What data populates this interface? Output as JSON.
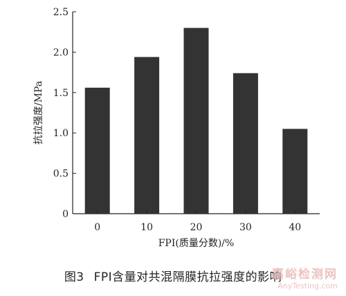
{
  "chart_data": {
    "type": "bar",
    "categories": [
      "0",
      "10",
      "20",
      "30",
      "40"
    ],
    "values": [
      1.56,
      1.94,
      2.3,
      1.74,
      1.05
    ],
    "ylim": [
      0,
      2.5
    ],
    "yticks": [
      "0",
      "0.5",
      "1.0",
      "1.5",
      "2.0",
      "2.5"
    ],
    "xlabel": "FPI(质量分数)/%",
    "ylabel": "抗拉强度/MPa",
    "bar_color": "#333333",
    "grid": false,
    "legend": "none"
  },
  "caption": {
    "figure_number": "图3",
    "text": "FPI含量对共混隔膜抗拉强度的影响"
  },
  "watermark": {
    "main": "嘉峪检测网",
    "sub": "AnyTesting.com"
  }
}
